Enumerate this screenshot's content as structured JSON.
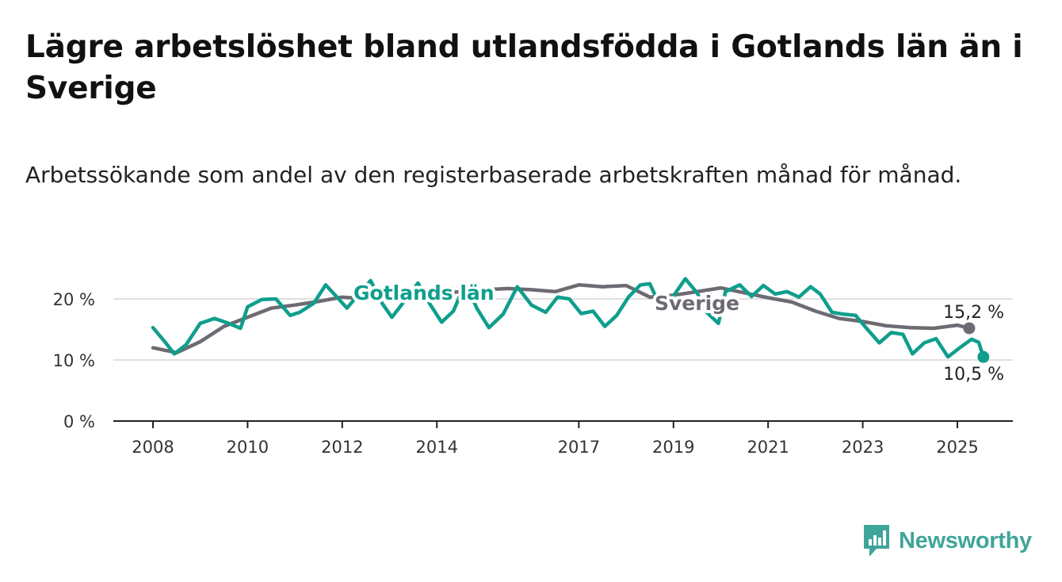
{
  "title": "Lägre arbetslöshet bland utlandsfödda i Gotlands län än i Sverige",
  "subtitle": "Arbetssökande som andel av den registerbaserade arbetskraften månad för månad.",
  "brand": {
    "name": "Newsworthy",
    "icon": "newsworthy-logo-icon",
    "color": "#3fa59a"
  },
  "chart_data": {
    "type": "line",
    "ylim": [
      0,
      20
    ],
    "yticks": [
      "0 %",
      "10 %",
      "20 %"
    ],
    "ytick_values": [
      0,
      10,
      20
    ],
    "xticks": [
      "2008",
      "2010",
      "2012",
      "2014",
      "2017",
      "2019",
      "2021",
      "2023",
      "2025"
    ],
    "xtick_values": [
      2008,
      2010,
      2012,
      2014,
      2017,
      2019,
      2021,
      2023,
      2025
    ],
    "grid": true,
    "series": [
      {
        "name": "Sverige",
        "color": "#6e6a72",
        "end_label": "15,2 %",
        "end_marker": true,
        "points": [
          [
            2008.0,
            12.0
          ],
          [
            2008.5,
            11.2
          ],
          [
            2009.0,
            13.0
          ],
          [
            2009.5,
            15.5
          ],
          [
            2010.0,
            17.0
          ],
          [
            2010.5,
            18.5
          ],
          [
            2011.0,
            19.0
          ],
          [
            2011.5,
            19.6
          ],
          [
            2012.0,
            20.3
          ],
          [
            2012.5,
            20.0
          ],
          [
            2013.0,
            20.6
          ],
          [
            2013.5,
            21.0
          ],
          [
            2014.0,
            20.8
          ],
          [
            2014.5,
            21.2
          ],
          [
            2015.0,
            21.5
          ],
          [
            2015.5,
            21.7
          ],
          [
            2016.0,
            21.5
          ],
          [
            2016.5,
            21.2
          ],
          [
            2017.0,
            22.3
          ],
          [
            2017.5,
            22.0
          ],
          [
            2018.0,
            22.2
          ],
          [
            2018.5,
            20.3
          ],
          [
            2019.0,
            20.6
          ],
          [
            2019.5,
            21.2
          ],
          [
            2020.0,
            21.8
          ],
          [
            2020.5,
            21.0
          ],
          [
            2021.0,
            20.2
          ],
          [
            2021.5,
            19.5
          ],
          [
            2022.0,
            18.0
          ],
          [
            2022.5,
            16.8
          ],
          [
            2023.0,
            16.3
          ],
          [
            2023.5,
            15.6
          ],
          [
            2024.0,
            15.3
          ],
          [
            2024.5,
            15.2
          ],
          [
            2025.0,
            15.7
          ],
          [
            2025.25,
            15.2
          ]
        ]
      },
      {
        "name": "Gotlands län",
        "color": "#0f9e8c",
        "end_label": "10,5 %",
        "end_marker": true,
        "points": [
          [
            2008.0,
            15.3
          ],
          [
            2008.25,
            13.0
          ],
          [
            2008.45,
            11.0
          ],
          [
            2008.7,
            12.5
          ],
          [
            2009.0,
            16.0
          ],
          [
            2009.3,
            16.8
          ],
          [
            2009.6,
            16.0
          ],
          [
            2009.85,
            15.2
          ],
          [
            2010.0,
            18.7
          ],
          [
            2010.3,
            19.9
          ],
          [
            2010.6,
            20.0
          ],
          [
            2010.9,
            17.3
          ],
          [
            2011.1,
            17.8
          ],
          [
            2011.4,
            19.3
          ],
          [
            2011.65,
            22.3
          ],
          [
            2011.9,
            20.2
          ],
          [
            2012.1,
            18.5
          ],
          [
            2012.35,
            20.8
          ],
          [
            2012.6,
            23.0
          ],
          [
            2012.85,
            19.2
          ],
          [
            2013.05,
            17.0
          ],
          [
            2013.3,
            19.5
          ],
          [
            2013.6,
            22.6
          ],
          [
            2013.85,
            19.2
          ],
          [
            2014.1,
            16.2
          ],
          [
            2014.35,
            18.0
          ],
          [
            2014.6,
            22.6
          ],
          [
            2014.85,
            18.4
          ],
          [
            2015.1,
            15.3
          ],
          [
            2015.4,
            17.5
          ],
          [
            2015.7,
            22.0
          ],
          [
            2016.0,
            19.0
          ],
          [
            2016.3,
            17.8
          ],
          [
            2016.55,
            20.3
          ],
          [
            2016.8,
            20.0
          ],
          [
            2017.05,
            17.6
          ],
          [
            2017.3,
            18.0
          ],
          [
            2017.55,
            15.5
          ],
          [
            2017.8,
            17.3
          ],
          [
            2018.05,
            20.3
          ],
          [
            2018.3,
            22.3
          ],
          [
            2018.5,
            22.5
          ],
          [
            2018.75,
            18.3
          ],
          [
            2019.0,
            20.5
          ],
          [
            2019.25,
            23.3
          ],
          [
            2019.5,
            21.0
          ],
          [
            2019.7,
            17.8
          ],
          [
            2019.95,
            16.0
          ],
          [
            2020.1,
            21.2
          ],
          [
            2020.4,
            22.3
          ],
          [
            2020.65,
            20.4
          ],
          [
            2020.9,
            22.2
          ],
          [
            2021.15,
            20.8
          ],
          [
            2021.4,
            21.2
          ],
          [
            2021.65,
            20.3
          ],
          [
            2021.9,
            22.0
          ],
          [
            2022.1,
            20.8
          ],
          [
            2022.35,
            17.8
          ],
          [
            2022.6,
            17.5
          ],
          [
            2022.85,
            17.3
          ],
          [
            2023.1,
            15.0
          ],
          [
            2023.35,
            12.8
          ],
          [
            2023.6,
            14.5
          ],
          [
            2023.85,
            14.2
          ],
          [
            2024.05,
            11.0
          ],
          [
            2024.3,
            12.8
          ],
          [
            2024.55,
            13.5
          ],
          [
            2024.8,
            10.5
          ],
          [
            2025.05,
            12.0
          ],
          [
            2025.3,
            13.4
          ],
          [
            2025.45,
            12.9
          ],
          [
            2025.55,
            10.5
          ]
        ]
      }
    ]
  }
}
